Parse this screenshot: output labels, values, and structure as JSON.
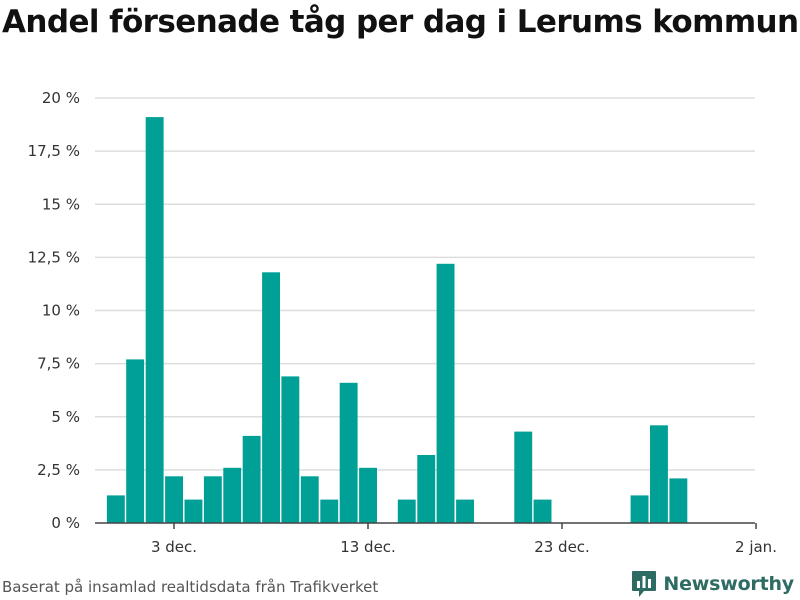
{
  "chart_data": {
    "type": "bar",
    "title": "Andel försenade tåg per dag i Lerums kommun",
    "ylim": [
      0,
      20
    ],
    "yticks": [
      "0 %",
      "2,5 %",
      "5 %",
      "7,5 %",
      "10 %",
      "12,5 %",
      "15 %",
      "17,5 %",
      "20 %"
    ],
    "xticks": [
      "3 dec.",
      "13 dec.",
      "23 dec.",
      "2 jan."
    ],
    "grid": true,
    "bar_color": "#00a096",
    "x": [
      "2023-11-30",
      "2023-12-01",
      "2023-12-02",
      "2023-12-03",
      "2023-12-04",
      "2023-12-05",
      "2023-12-06",
      "2023-12-07",
      "2023-12-08",
      "2023-12-09",
      "2023-12-10",
      "2023-12-11",
      "2023-12-12",
      "2023-12-13",
      "2023-12-14",
      "2023-12-15",
      "2023-12-16",
      "2023-12-17",
      "2023-12-18",
      "2023-12-19",
      "2023-12-20",
      "2023-12-21",
      "2023-12-22",
      "2023-12-23",
      "2023-12-24",
      "2023-12-25",
      "2023-12-26",
      "2023-12-27",
      "2023-12-28",
      "2023-12-29",
      "2023-12-30",
      "2023-12-31"
    ],
    "values": [
      1.3,
      7.7,
      19.1,
      2.2,
      1.1,
      2.2,
      2.6,
      4.1,
      11.8,
      6.9,
      2.2,
      1.1,
      6.6,
      2.6,
      0,
      1.1,
      3.2,
      12.2,
      1.1,
      0,
      0,
      4.3,
      1.1,
      0,
      0,
      0,
      0,
      1.3,
      4.6,
      2.1,
      0,
      0
    ]
  },
  "footer": {
    "source": "Baserat på insamlad realtidsdata från Trafikverket",
    "brand": "Newsworthy"
  },
  "brand_color": "#2d6b63"
}
